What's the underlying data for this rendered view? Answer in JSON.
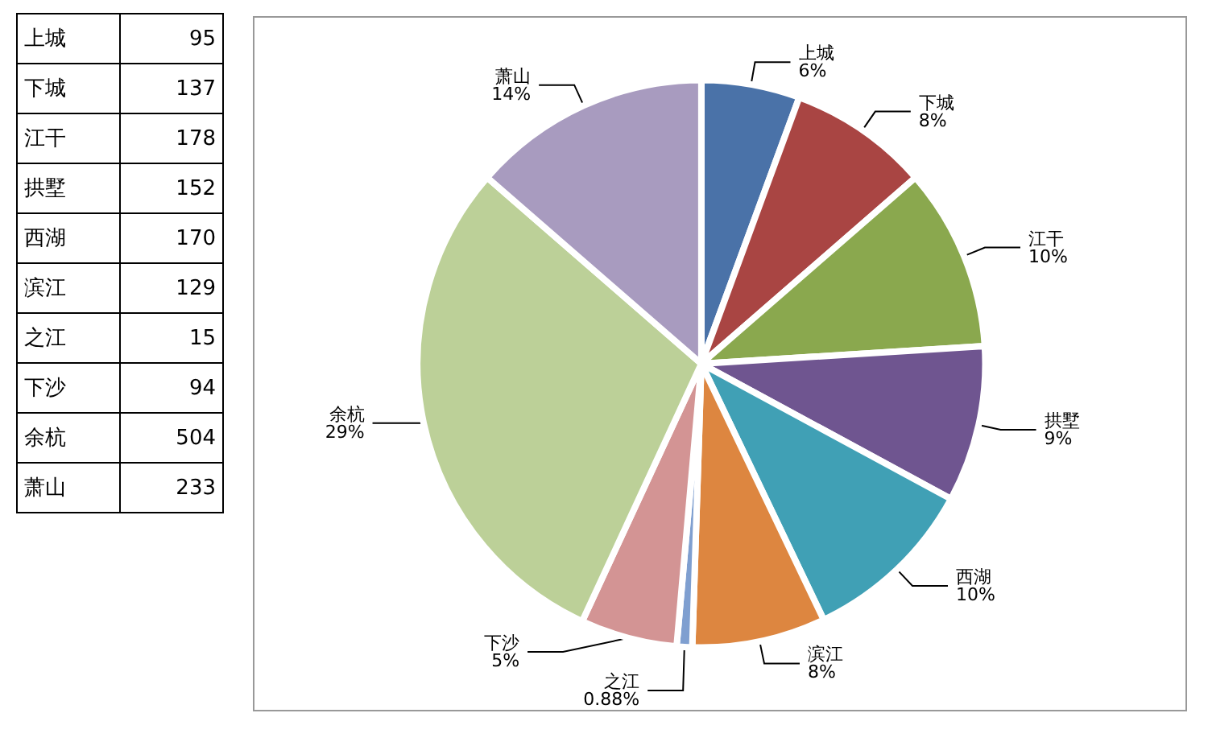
{
  "chart_data": [
    {
      "type": "other",
      "categories": [
        "上城",
        "下城",
        "江干",
        "拱墅",
        "西湖",
        "滨江",
        "之江",
        "下沙",
        "余杭",
        "萧山"
      ],
      "values": [
        95,
        137,
        178,
        152,
        170,
        129,
        15,
        94,
        504,
        233
      ],
      "data_labels": true
    },
    {
      "type": "pie",
      "categories": [
        "上城",
        "下城",
        "江干",
        "拱墅",
        "西湖",
        "滨江",
        "之江",
        "下沙",
        "余杭",
        "萧山"
      ],
      "values": [
        5.6,
        8.0,
        10.4,
        8.9,
        10.0,
        7.6,
        0.88,
        5.5,
        29.5,
        13.6
      ],
      "colors": [
        "#4a72a8",
        "#a94543",
        "#8aa84e",
        "#6f5590",
        "#40a0b5",
        "#dd8640",
        "#7f9fd0",
        "#d39494",
        "#bcd098",
        "#a89bbf"
      ],
      "value_labels": [
        "6%",
        "8%",
        "10%",
        "9%",
        "10%",
        "8%",
        "0.88%",
        "5%",
        "29%",
        "14%"
      ],
      "legend": false
    }
  ]
}
